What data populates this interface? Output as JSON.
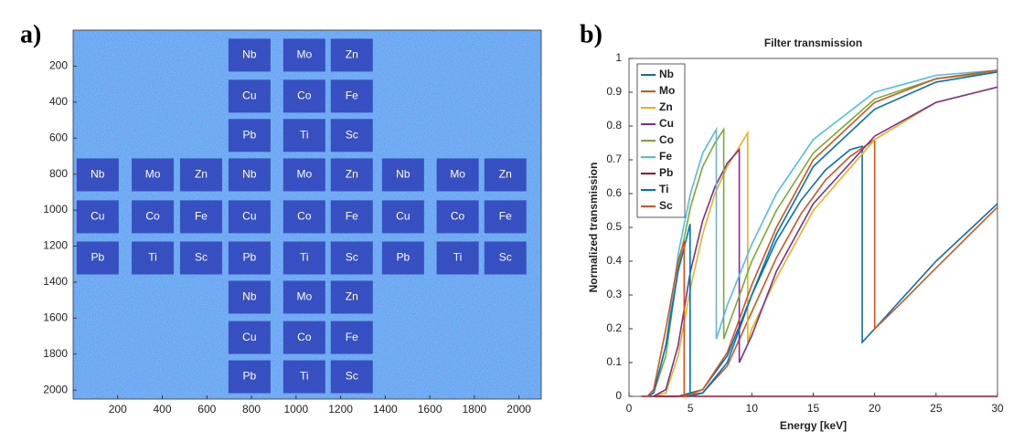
{
  "chart_data": [
    {
      "type": "image",
      "panel": "a)",
      "xlim": [
        0,
        2100
      ],
      "ylim": [
        0,
        2050
      ],
      "y_reversed": true,
      "xticks": [
        200,
        400,
        600,
        800,
        1000,
        1200,
        1400,
        1600,
        1800,
        2000
      ],
      "yticks": [
        200,
        400,
        600,
        800,
        1000,
        1200,
        1400,
        1600,
        1800,
        2000
      ],
      "labels": [
        {
          "text": "Nb",
          "x": 791,
          "y": 139
        },
        {
          "text": "Mo",
          "x": 1037,
          "y": 139
        },
        {
          "text": "Zn",
          "x": 1250,
          "y": 139
        },
        {
          "text": "Cu",
          "x": 791,
          "y": 367
        },
        {
          "text": "Co",
          "x": 1037,
          "y": 367
        },
        {
          "text": "Fe",
          "x": 1250,
          "y": 367
        },
        {
          "text": "Pb",
          "x": 791,
          "y": 585
        },
        {
          "text": "Ti",
          "x": 1037,
          "y": 585
        },
        {
          "text": "Sc",
          "x": 1250,
          "y": 585
        },
        {
          "text": "Nb",
          "x": 110,
          "y": 804
        },
        {
          "text": "Mo",
          "x": 357,
          "y": 804
        },
        {
          "text": "Zn",
          "x": 574,
          "y": 804
        },
        {
          "text": "Nb",
          "x": 791,
          "y": 804
        },
        {
          "text": "Mo",
          "x": 1037,
          "y": 804
        },
        {
          "text": "Zn",
          "x": 1250,
          "y": 804
        },
        {
          "text": "Nb",
          "x": 1480,
          "y": 804
        },
        {
          "text": "Mo",
          "x": 1725,
          "y": 804
        },
        {
          "text": "Zn",
          "x": 1939,
          "y": 804
        },
        {
          "text": "Cu",
          "x": 110,
          "y": 1037
        },
        {
          "text": "Co",
          "x": 357,
          "y": 1037
        },
        {
          "text": "Fe",
          "x": 574,
          "y": 1037
        },
        {
          "text": "Cu",
          "x": 791,
          "y": 1037
        },
        {
          "text": "Co",
          "x": 1037,
          "y": 1037
        },
        {
          "text": "Fe",
          "x": 1250,
          "y": 1037
        },
        {
          "text": "Cu",
          "x": 1480,
          "y": 1037
        },
        {
          "text": "Co",
          "x": 1725,
          "y": 1037
        },
        {
          "text": "Fe",
          "x": 1939,
          "y": 1037
        },
        {
          "text": "Pb",
          "x": 110,
          "y": 1266
        },
        {
          "text": "Ti",
          "x": 357,
          "y": 1266
        },
        {
          "text": "Sc",
          "x": 574,
          "y": 1266
        },
        {
          "text": "Pb",
          "x": 791,
          "y": 1266
        },
        {
          "text": "Ti",
          "x": 1037,
          "y": 1266
        },
        {
          "text": "Sc",
          "x": 1250,
          "y": 1266
        },
        {
          "text": "Pb",
          "x": 1480,
          "y": 1266
        },
        {
          "text": "Ti",
          "x": 1725,
          "y": 1266
        },
        {
          "text": "Sc",
          "x": 1939,
          "y": 1266
        },
        {
          "text": "Nb",
          "x": 791,
          "y": 1484
        },
        {
          "text": "Mo",
          "x": 1037,
          "y": 1484
        },
        {
          "text": "Zn",
          "x": 1250,
          "y": 1484
        },
        {
          "text": "Cu",
          "x": 791,
          "y": 1708
        },
        {
          "text": "Co",
          "x": 1037,
          "y": 1708
        },
        {
          "text": "Fe",
          "x": 1250,
          "y": 1708
        },
        {
          "text": "Pb",
          "x": 791,
          "y": 1926
        },
        {
          "text": "Ti",
          "x": 1037,
          "y": 1926
        },
        {
          "text": "Sc",
          "x": 1250,
          "y": 1926
        }
      ]
    },
    {
      "type": "line",
      "panel": "b)",
      "title": "Filter transmission",
      "xlabel": "Energy [keV]",
      "ylabel": "Normalized transmission",
      "xlim": [
        0,
        30
      ],
      "ylim": [
        0,
        1
      ],
      "xticks": [
        0,
        5,
        10,
        15,
        20,
        25,
        30
      ],
      "yticks": [
        0,
        0.1,
        0.2,
        0.3,
        0.4,
        0.5,
        0.6,
        0.7,
        0.8,
        0.9,
        1
      ],
      "legend": "upper left",
      "series": [
        {
          "name": "Nb",
          "color": "#0072bd",
          "x": [
            2,
            4,
            6,
            8,
            10,
            12,
            14,
            16,
            18,
            18.99,
            18.99,
            20,
            22,
            25,
            30
          ],
          "values": [
            0,
            0,
            0.02,
            0.12,
            0.3,
            0.46,
            0.58,
            0.67,
            0.73,
            0.74,
            0.16,
            0.2,
            0.28,
            0.4,
            0.57
          ]
        },
        {
          "name": "Mo",
          "color": "#d95319",
          "x": [
            2,
            4,
            6,
            8,
            10,
            12,
            14,
            16,
            18,
            20,
            20,
            22,
            25,
            30
          ],
          "values": [
            0,
            0,
            0.01,
            0.09,
            0.25,
            0.41,
            0.54,
            0.64,
            0.71,
            0.76,
            0.2,
            0.27,
            0.38,
            0.56
          ]
        },
        {
          "name": "Zn",
          "color": "#edb120",
          "x": [
            2,
            3,
            4,
            5,
            6,
            7,
            8,
            9,
            9.66,
            9.66,
            10,
            12,
            15,
            20,
            25,
            30
          ],
          "values": [
            0,
            0.01,
            0.12,
            0.32,
            0.48,
            0.6,
            0.68,
            0.74,
            0.78,
            0.16,
            0.2,
            0.35,
            0.55,
            0.76,
            0.87,
            0.915
          ]
        },
        {
          "name": "Cu",
          "color": "#7e2f8e",
          "x": [
            2,
            3,
            4,
            5,
            6,
            7,
            8,
            8.98,
            8.98,
            10,
            12,
            15,
            20,
            25,
            30
          ],
          "values": [
            0,
            0.02,
            0.15,
            0.37,
            0.52,
            0.62,
            0.69,
            0.73,
            0.1,
            0.18,
            0.37,
            0.57,
            0.77,
            0.87,
            0.915
          ]
        },
        {
          "name": "Co",
          "color": "#77ac30",
          "x": [
            1.5,
            2,
            3,
            4,
            5,
            6,
            7,
            7.71,
            7.71,
            8,
            10,
            12,
            15,
            20,
            25,
            30
          ],
          "values": [
            0,
            0.01,
            0.12,
            0.38,
            0.56,
            0.68,
            0.75,
            0.79,
            0.17,
            0.2,
            0.4,
            0.55,
            0.72,
            0.88,
            0.94,
            0.96
          ]
        },
        {
          "name": "Fe",
          "color": "#4dbeee",
          "x": [
            1.5,
            2,
            3,
            4,
            5,
            6,
            7.11,
            7.11,
            8,
            10,
            12,
            15,
            20,
            25,
            30
          ],
          "values": [
            0,
            0.01,
            0.15,
            0.42,
            0.6,
            0.72,
            0.79,
            0.17,
            0.27,
            0.45,
            0.6,
            0.76,
            0.9,
            0.95,
            0.965
          ]
        },
        {
          "name": "Pb",
          "color": "#a2142f",
          "x": [
            1,
            30
          ],
          "values": [
            0,
            0
          ]
        },
        {
          "name": "Ti",
          "color": "#0072bd",
          "x": [
            1.5,
            2,
            3,
            4,
            4.97,
            4.97,
            6,
            8,
            10,
            12,
            15,
            20,
            25,
            30
          ],
          "values": [
            0,
            0.01,
            0.15,
            0.37,
            0.51,
            0,
            0.01,
            0.1,
            0.3,
            0.48,
            0.68,
            0.85,
            0.93,
            0.96
          ]
        },
        {
          "name": "Sc",
          "color": "#d95319",
          "x": [
            1.5,
            2,
            3,
            4,
            4.49,
            4.49,
            6,
            8,
            10,
            12,
            15,
            20,
            25,
            30
          ],
          "values": [
            0,
            0.02,
            0.2,
            0.4,
            0.46,
            0,
            0.02,
            0.13,
            0.33,
            0.5,
            0.7,
            0.87,
            0.94,
            0.965
          ]
        }
      ]
    }
  ]
}
